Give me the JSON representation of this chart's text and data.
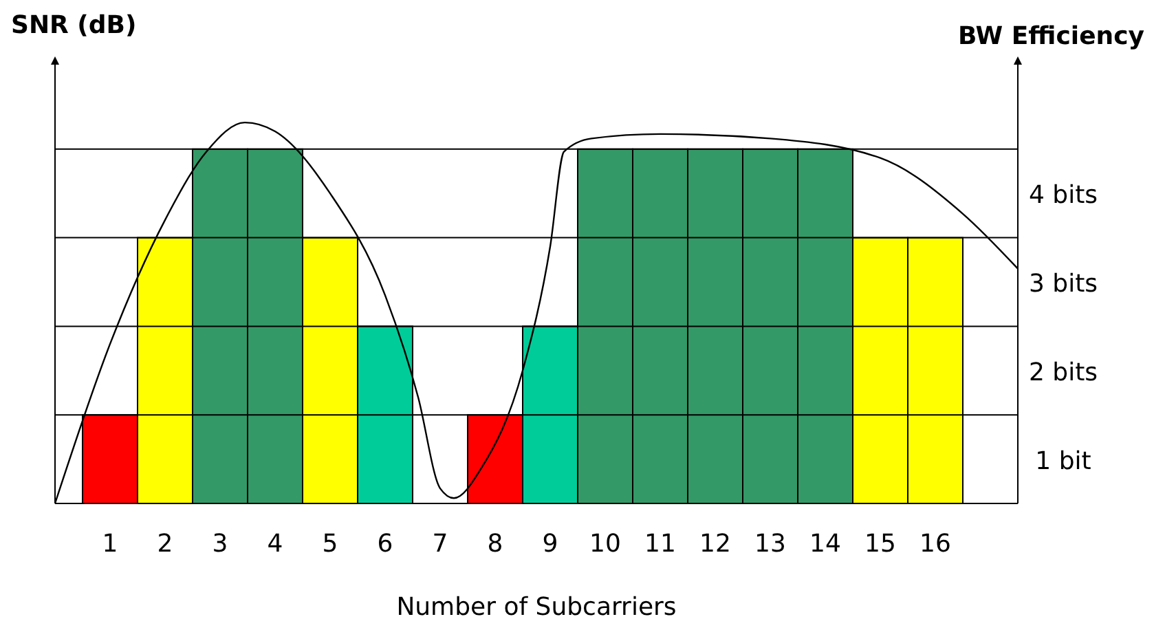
{
  "chart_data": {
    "type": "bar",
    "xlabel": "Number of Subcarriers",
    "ylabel": "SNR (dB)",
    "y2label": "BW Efficiency",
    "x": [
      1,
      2,
      3,
      4,
      5,
      6,
      7,
      8,
      9,
      10,
      11,
      12,
      13,
      14,
      15,
      16
    ],
    "xlim": [
      0,
      17.5
    ],
    "xticks": [
      1,
      2,
      3,
      4,
      5,
      6,
      7,
      8,
      9,
      10,
      11,
      12,
      13,
      14,
      15,
      16
    ],
    "y2lim": [
      0,
      5
    ],
    "y2ticks": [
      {
        "value": 0.5,
        "label": "1 bit"
      },
      {
        "value": 1.5,
        "label": "2 bits"
      },
      {
        "value": 2.5,
        "label": "3 bits"
      },
      {
        "value": 3.5,
        "label": "4 bits"
      }
    ],
    "series": [
      {
        "axis": "y2",
        "values": [
          1,
          3,
          4,
          4,
          3,
          2,
          0,
          1,
          2,
          4,
          4,
          4,
          4,
          4,
          3,
          3
        ],
        "colors": [
          "#ff0000",
          "#ffff00",
          "#339966",
          "#339966",
          "#ffff00",
          "#00cc99",
          "#00cc99",
          "#ff0000",
          "#00cc99",
          "#339966",
          "#339966",
          "#339966",
          "#339966",
          "#339966",
          "#ffff00",
          "#ffff00"
        ]
      },
      {
        "type": "line",
        "axis": "y2",
        "color": "#000000",
        "x": [
          0,
          1,
          2,
          2.75,
          3.45,
          4,
          5,
          6,
          6.6,
          7,
          7.25,
          7.75,
          8.5,
          9,
          9.25,
          9.75,
          11,
          13,
          15,
          16.5,
          17.5
        ],
        "values": [
          0,
          1.8,
          3.2,
          3.97,
          4.3,
          4.2,
          3.5,
          2.35,
          1.2,
          0.17,
          0.06,
          0.4,
          1.5,
          2.9,
          3.97,
          4.12,
          4.17,
          4.12,
          3.9,
          3.27,
          2.65
        ]
      }
    ],
    "ref_lines": [
      {
        "axis": "y2",
        "value": 1,
        "color": "#000000"
      },
      {
        "axis": "y2",
        "value": 2,
        "color": "#000000"
      },
      {
        "axis": "y2",
        "value": 3,
        "color": "#000000"
      },
      {
        "axis": "y2",
        "value": 4,
        "color": "#000000"
      }
    ],
    "grid": false
  }
}
